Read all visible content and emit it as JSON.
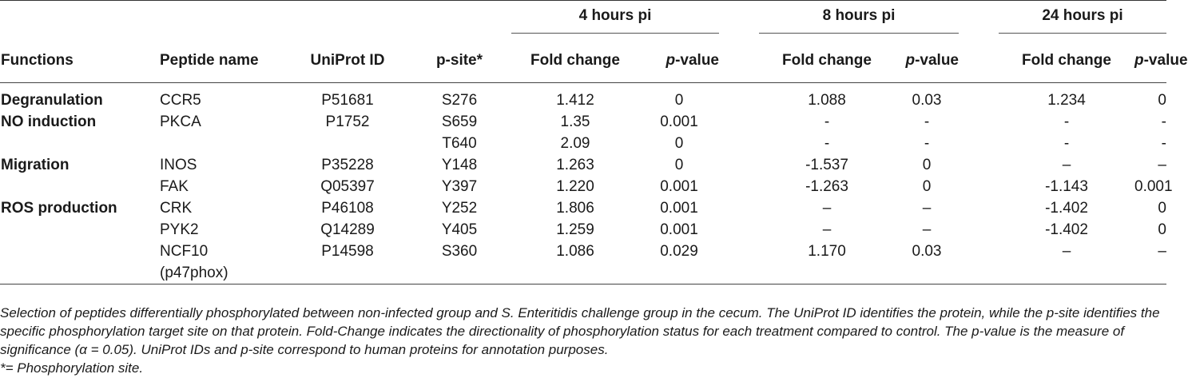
{
  "table": {
    "groups": [
      "4 hours pi",
      "8 hours pi",
      "24 hours pi"
    ],
    "headers": {
      "functions": "Functions",
      "peptide": "Peptide name",
      "uniprot": "UniProt ID",
      "psite": "p-site*",
      "fc": "Fold change",
      "p_italic": "p",
      "p_rest": "-value"
    },
    "rows": [
      {
        "function": "Degranulation",
        "peptide": "CCR5",
        "uniprot": "P51681",
        "psite": "S276",
        "fc4": "1.412",
        "p4": "0",
        "fc8": "1.088",
        "p8": "0.03",
        "fc24": "1.234",
        "p24": "0"
      },
      {
        "function": "NO induction",
        "peptide": "PKCA",
        "uniprot": "P1752",
        "psite": "S659",
        "fc4": "1.35",
        "p4": "0.001",
        "fc8": "-",
        "p8": "-",
        "fc24": "-",
        "p24": "-"
      },
      {
        "function": "",
        "peptide": "",
        "uniprot": "",
        "psite": "T640",
        "fc4": "2.09",
        "p4": "0",
        "fc8": "-",
        "p8": "-",
        "fc24": "-",
        "p24": "-"
      },
      {
        "function": "Migration",
        "peptide": "INOS",
        "uniprot": "P35228",
        "psite": "Y148",
        "fc4": "1.263",
        "p4": "0",
        "fc8": "-1.537",
        "p8": "0",
        "fc24": "–",
        "p24": "–"
      },
      {
        "function": "",
        "peptide": "FAK",
        "uniprot": "Q05397",
        "psite": "Y397",
        "fc4": "1.220",
        "p4": "0.001",
        "fc8": "-1.263",
        "p8": "0",
        "fc24": "-1.143",
        "p24": "0.001"
      },
      {
        "function": "ROS production",
        "peptide": "CRK",
        "uniprot": "P46108",
        "psite": "Y252",
        "fc4": "1.806",
        "p4": "0.001",
        "fc8": "–",
        "p8": "–",
        "fc24": "-1.402",
        "p24": "0"
      },
      {
        "function": "",
        "peptide": "PYK2",
        "uniprot": "Q14289",
        "psite": "Y405",
        "fc4": "1.259",
        "p4": "0.001",
        "fc8": "–",
        "p8": "–",
        "fc24": "-1.402",
        "p24": "0"
      },
      {
        "function": "",
        "peptide": "NCF10",
        "uniprot": "P14598",
        "psite": "S360",
        "fc4": "1.086",
        "p4": "0.029",
        "fc8": "1.170",
        "p8": "0.03",
        "fc24": "–",
        "p24": "–"
      },
      {
        "function": "",
        "peptide": "(p47phox)",
        "uniprot": "",
        "psite": "",
        "fc4": "",
        "p4": "",
        "fc8": "",
        "p8": "",
        "fc24": "",
        "p24": ""
      }
    ]
  },
  "caption": {
    "text": "Selection of peptides differentially phosphorylated between non-infected group and S. Enteritidis challenge group in the cecum. The UniProt ID identifies the protein, while the p-site identifies the specific phosphorylation target site on that protein. Fold-Change indicates the directionality of phosphorylation status for each treatment compared to control. The p-value is the measure of significance (α = 0.05). UniProt IDs and p-site correspond to human proteins for annotation purposes.",
    "footnote": "*= Phosphorylation site."
  }
}
